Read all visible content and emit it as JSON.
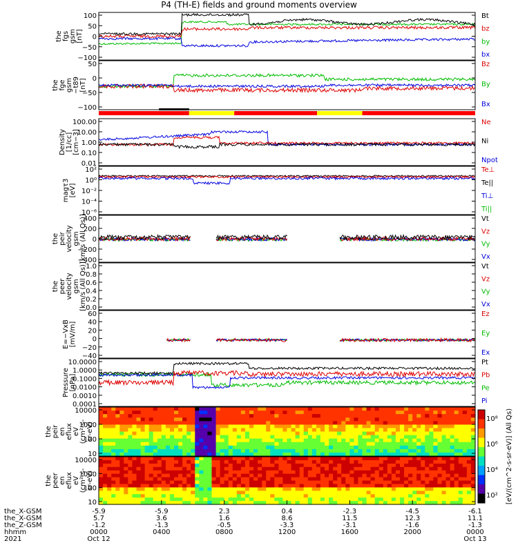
{
  "title": "P4 (TH-E) fields and ground moments overview",
  "chart_data": {
    "type": "line",
    "x_axis": {
      "label": "hhmm",
      "ticks": [
        "0000",
        "0400",
        "0800",
        "1200",
        "1600",
        "2000",
        "0000"
      ],
      "date_labels": [
        "Oct 12",
        "",
        "",
        "",
        "",
        "",
        "Oct 13"
      ],
      "year": "2021"
    },
    "ephemeris": [
      {
        "name": "the_X-GSM",
        "values": [
          "-5.9",
          "-5.9",
          "2.3",
          "0.4",
          "-2.3",
          "-4.5",
          "-6.1"
        ]
      },
      {
        "name": "the_X-GSM",
        "values": [
          "5.7",
          "3.6",
          "1.6",
          "8.6",
          "11.5",
          "12.3",
          "11.1"
        ]
      },
      {
        "name": "the_Z-GSM",
        "values": [
          "-1.2",
          "-1.3",
          "-0.5",
          "-3.3",
          "-3.1",
          "-1.6",
          "-1.3"
        ]
      }
    ],
    "panels": [
      {
        "ylabel": [
          "the",
          "fgs",
          "gsm",
          "[nT]"
        ],
        "yticks": [
          "100",
          "50",
          "0",
          "−50",
          "−100"
        ],
        "legend": [
          {
            "name": "Bt",
            "color": "#000000"
          },
          {
            "name": "bz",
            "color": "#dd0000"
          },
          {
            "name": "by",
            "color": "#00bb00"
          },
          {
            "name": "bx",
            "color": "#0000dd"
          }
        ]
      },
      {
        "ylabel": [
          "the",
          "fge",
          "gsm",
          "−t89",
          "[nT]"
        ],
        "yticks": [
          "50",
          "0",
          "−50",
          "−100"
        ],
        "legend": [
          {
            "name": "Bz",
            "color": "#dd0000"
          },
          {
            "name": "By",
            "color": "#00bb00"
          },
          {
            "name": "Bx",
            "color": "#0000dd"
          }
        ]
      },
      {
        "ylabel": [
          "Density",
          "[1/cc]",
          "[cm−3]"
        ],
        "yticks": [
          "100.00",
          "10.00",
          "1.00",
          "0.10",
          "0.01"
        ],
        "legend": [
          {
            "name": "Ne",
            "color": "#dd0000"
          },
          {
            "name": "Ni",
            "color": "#000000"
          },
          {
            "name": "Npot",
            "color": "#0000dd"
          }
        ]
      },
      {
        "ylabel": [
          "magτ3",
          "[eV]"
        ],
        "yticks": [
          "10²",
          "10⁰",
          "10⁻²",
          "10⁻⁴",
          "10⁻⁶"
        ],
        "legend": [
          {
            "name": "Te⊥",
            "color": "#dd0000"
          },
          {
            "name": "Te||",
            "color": "#000000"
          },
          {
            "name": "Ti⊥",
            "color": "#0000dd"
          },
          {
            "name": "Ti||",
            "color": "#00bb00"
          }
        ]
      },
      {
        "ylabel": [
          "the",
          "peir",
          "velocity",
          "gsm",
          "[km/s (All Qs)]"
        ],
        "yticks": [
          "400",
          "200",
          "0",
          "−200",
          "−400"
        ],
        "legend": [
          {
            "name": "Vt",
            "color": "#000000"
          },
          {
            "name": "Vz",
            "color": "#dd0000"
          },
          {
            "name": "Vy",
            "color": "#00bb00"
          },
          {
            "name": "Vx",
            "color": "#0000dd"
          }
        ]
      },
      {
        "ylabel": [
          "the",
          "peer",
          "velocity",
          "gsm",
          "[km/s (All Qs)]"
        ],
        "yticks": [
          "1.0",
          "0.8",
          "0.6",
          "0.4",
          "0.2",
          "0.0"
        ],
        "legend": [
          {
            "name": "Vt",
            "color": "#000000"
          },
          {
            "name": "Vz",
            "color": "#dd0000"
          },
          {
            "name": "Vy",
            "color": "#00bb00"
          },
          {
            "name": "Vx",
            "color": "#0000dd"
          }
        ]
      },
      {
        "ylabel": [
          "E=−VxB",
          "[mV/m]"
        ],
        "yticks": [
          "60",
          "40",
          "20",
          "0",
          "−20",
          "−40"
        ],
        "legend": [
          {
            "name": "Ez",
            "color": "#dd0000"
          },
          {
            "name": "Ey",
            "color": "#00bb00"
          },
          {
            "name": "Ex",
            "color": "#0000dd"
          }
        ]
      },
      {
        "ylabel": [
          "Pressure",
          "[nPa]"
        ],
        "yticks": [
          "10.0000",
          "1.0000",
          "0.1000",
          "0.0100",
          "0.0010",
          "0.0001"
        ],
        "legend": [
          {
            "name": "Pt",
            "color": "#000000"
          },
          {
            "name": "Pb",
            "color": "#dd0000"
          },
          {
            "name": "Pe",
            "color": "#00bb00"
          },
          {
            "name": "Pi",
            "color": "#0000dd"
          }
        ]
      },
      {
        "ylabel": [
          "the",
          "peir",
          "en",
          "eflux",
          "eV",
          "(cm²-s-",
          "sr-eV)"
        ],
        "yticks": [
          "10000",
          "1000",
          "100",
          "10"
        ],
        "spectrogram": true
      },
      {
        "ylabel": [
          "the",
          "peer",
          "en",
          "eflux",
          "eV",
          "(cm²-s-",
          "sr-eV)"
        ],
        "yticks": [
          "10000",
          "1000",
          "100",
          "10"
        ],
        "spectrogram": true
      }
    ],
    "colorbar": {
      "label": "[eV/(cm^2-s-sr-eV)] (All Qs)",
      "ticks": [
        "10⁸",
        "10⁶",
        "10⁴",
        "10²"
      ],
      "colors": [
        "#cc0000",
        "#ff3300",
        "#ff9900",
        "#ffff00",
        "#66ff33",
        "#00e0c0",
        "#00a0ff",
        "#0030ff",
        "#5500aa",
        "#000000"
      ]
    },
    "mode_bar": {
      "colors": {
        "slow": "#ff0000",
        "fast": "#ffff00"
      },
      "segments": [
        {
          "from": 0,
          "to": 0.24,
          "mode": "slow"
        },
        {
          "from": 0.24,
          "to": 0.36,
          "mode": "fast"
        },
        {
          "from": 0.36,
          "to": 0.58,
          "mode": "slow"
        },
        {
          "from": 0.58,
          "to": 0.7,
          "mode": "fast"
        },
        {
          "from": 0.7,
          "to": 1,
          "mode": "slow"
        }
      ]
    }
  }
}
